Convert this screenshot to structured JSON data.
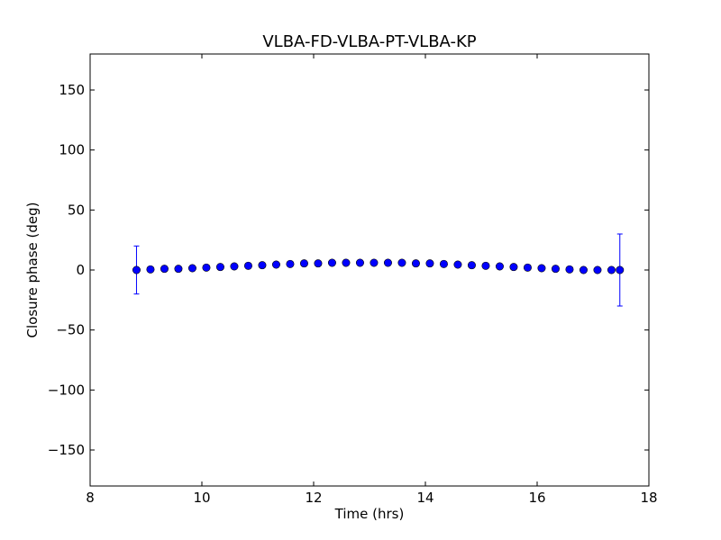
{
  "chart_data": {
    "type": "scatter",
    "title": "VLBA-FD-VLBA-PT-VLBA-KP",
    "xlabel": "Time (hrs)",
    "ylabel": "Closure phase (deg)",
    "xlim": [
      8,
      18
    ],
    "ylim": [
      -180,
      180
    ],
    "xticks": [
      8,
      10,
      12,
      14,
      16,
      18
    ],
    "xtick_labels": [
      "8",
      "10",
      "12",
      "14",
      "16",
      "18"
    ],
    "yticks": [
      -150,
      -100,
      -50,
      0,
      50,
      100,
      150
    ],
    "ytick_labels": [
      "−150",
      "−100",
      "−50",
      "0",
      "50",
      "100",
      "150"
    ],
    "grid": false,
    "marker_color": "#0000ff",
    "series": [
      {
        "x": [
          8.83,
          9.08,
          9.33,
          9.58,
          9.83,
          10.08,
          10.33,
          10.58,
          10.83,
          11.08,
          11.33,
          11.58,
          11.83,
          12.08,
          12.33,
          12.58,
          12.83,
          13.08,
          13.33,
          13.58,
          13.83,
          14.08,
          14.33,
          14.58,
          14.83,
          15.08,
          15.33,
          15.58,
          15.83,
          16.08,
          16.33,
          16.58,
          16.83,
          17.08,
          17.33,
          17.48
        ],
        "y": [
          0.0,
          0.5,
          1.0,
          1.0,
          1.5,
          2.0,
          2.5,
          3.0,
          3.5,
          4.0,
          4.5,
          5.0,
          5.5,
          5.5,
          6.0,
          6.0,
          6.0,
          6.0,
          6.0,
          6.0,
          5.5,
          5.5,
          5.0,
          4.5,
          4.0,
          3.5,
          3.0,
          2.5,
          2.0,
          1.5,
          1.0,
          0.5,
          0.0,
          0.0,
          0.0,
          0.0
        ],
        "yerr": [
          20,
          null,
          null,
          null,
          null,
          null,
          null,
          null,
          null,
          null,
          null,
          null,
          null,
          null,
          null,
          null,
          null,
          null,
          null,
          null,
          null,
          null,
          null,
          null,
          null,
          null,
          null,
          null,
          null,
          null,
          null,
          null,
          null,
          null,
          null,
          30
        ]
      }
    ]
  }
}
